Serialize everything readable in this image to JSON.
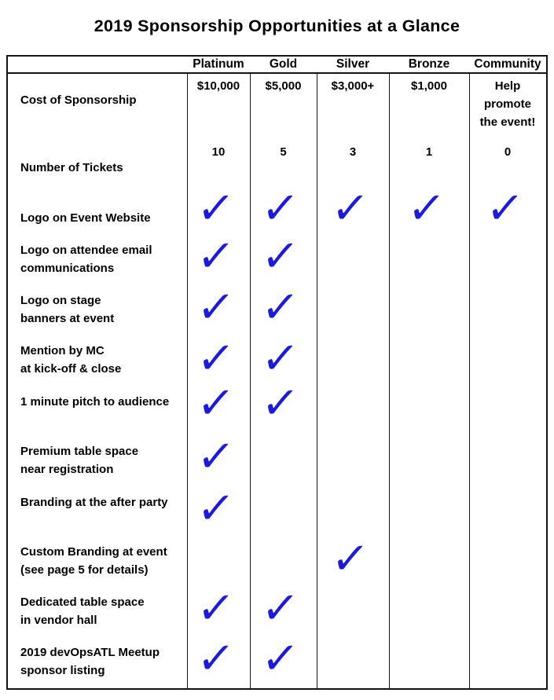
{
  "page": {
    "title": "2019 Sponsorship Opportunities at a Glance"
  },
  "table": {
    "columns": [
      "Platinum",
      "Gold",
      "Silver",
      "Bronze",
      "Community"
    ],
    "check_glyph": "✓",
    "check_color": "#1b1be0",
    "rows": [
      {
        "label": "Cost of Sponsorship",
        "values": [
          "$10,000",
          "$5,000",
          "$3,000+",
          "$1,000",
          "Help\npromote\nthe event!"
        ]
      },
      {
        "label": "Number of Tickets",
        "values": [
          "10",
          "5",
          "3",
          "1",
          "0"
        ]
      },
      {
        "label": "Logo on Event Website",
        "checks": [
          true,
          true,
          true,
          true,
          true
        ]
      },
      {
        "label": "Logo on attendee email\ncommunications",
        "checks": [
          true,
          true,
          false,
          false,
          false
        ]
      },
      {
        "label": "Logo on stage\nbanners at event",
        "checks": [
          true,
          true,
          false,
          false,
          false
        ]
      },
      {
        "label": "Mention by MC\nat kick-off & close",
        "checks": [
          true,
          true,
          false,
          false,
          false
        ]
      },
      {
        "label": "1 minute pitch to audience",
        "checks": [
          true,
          true,
          false,
          false,
          false
        ]
      },
      {
        "label": "Premium table space\n near registration",
        "checks": [
          true,
          false,
          false,
          false,
          false
        ]
      },
      {
        "label": "Branding at the after party",
        "checks": [
          true,
          false,
          false,
          false,
          false
        ]
      },
      {
        "label": "Custom Branding at event\n(see page 5 for details)",
        "checks": [
          false,
          false,
          true,
          false,
          false
        ]
      },
      {
        "label": "Dedicated table space\nin vendor hall",
        "checks": [
          true,
          true,
          false,
          false,
          false
        ]
      },
      {
        "label": "2019 devOpsATL Meetup\nsponsor listing",
        "checks": [
          true,
          true,
          false,
          false,
          false
        ]
      }
    ]
  }
}
